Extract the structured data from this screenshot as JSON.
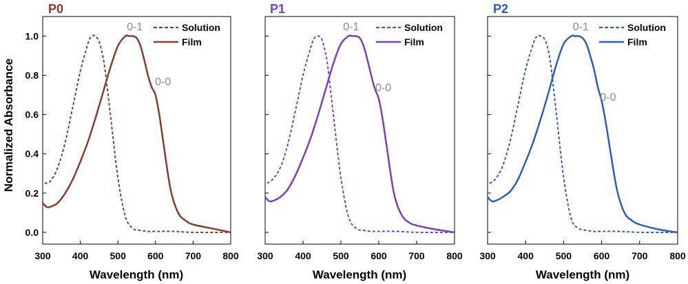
{
  "figure": {
    "ylabel": "Normalized Absorbance",
    "xlabel": "Wavelength (nm)"
  },
  "colors": {
    "P0": "#8B3A2E",
    "P1": "#7A3FC0",
    "P2": "#2A5CC8",
    "annotation": "#8a8a8a"
  },
  "chart_data": [
    {
      "type": "line",
      "title": "P0",
      "xlabel": "Wavelength (nm)",
      "ylabel": "Normalized Absorbance",
      "xlim": [
        300,
        800
      ],
      "ylim": [
        -0.06,
        1.1
      ],
      "xticks": [
        300,
        400,
        500,
        600,
        700,
        800
      ],
      "yticks": [
        0.0,
        0.2,
        0.4,
        0.6,
        0.8,
        1.0
      ],
      "xtick_labels": [
        "300",
        "400",
        "500",
        "600",
        "700",
        "800"
      ],
      "ytick_labels": [
        "0.0",
        "0.2",
        "0.4",
        "0.6",
        "0.8",
        "1.0"
      ],
      "legend_position": "top-right",
      "annotations": [
        {
          "text": "0-1",
          "x": 545,
          "y": 1.03
        },
        {
          "text": "0-0",
          "x": 620,
          "y": 0.75
        }
      ],
      "series": [
        {
          "name": "Solution",
          "style": "dashed",
          "x": [
            305,
            320,
            340,
            360,
            380,
            400,
            420,
            430,
            440,
            448,
            455,
            465,
            480,
            500,
            520,
            540,
            560,
            580,
            600,
            650,
            700,
            800
          ],
          "y": [
            0.25,
            0.26,
            0.33,
            0.46,
            0.64,
            0.82,
            0.96,
            1.0,
            1.0,
            0.98,
            0.94,
            0.84,
            0.6,
            0.28,
            0.08,
            0.02,
            0.01,
            0.005,
            0.005,
            0.005,
            0.0,
            0.0
          ]
        },
        {
          "name": "Film",
          "style": "solid",
          "x": [
            300,
            310,
            320,
            340,
            360,
            380,
            400,
            420,
            440,
            460,
            480,
            500,
            520,
            530,
            540,
            550,
            560,
            570,
            580,
            590,
            600,
            610,
            620,
            640,
            660,
            680,
            700,
            750,
            800
          ],
          "y": [
            0.15,
            0.13,
            0.13,
            0.15,
            0.2,
            0.27,
            0.36,
            0.46,
            0.58,
            0.71,
            0.84,
            0.95,
            1.0,
            1.0,
            1.0,
            0.99,
            0.95,
            0.88,
            0.8,
            0.74,
            0.7,
            0.6,
            0.47,
            0.22,
            0.1,
            0.06,
            0.04,
            0.02,
            0.0
          ]
        }
      ]
    },
    {
      "type": "line",
      "title": "P1",
      "xlabel": "Wavelength (nm)",
      "ylabel": "",
      "xlim": [
        300,
        800
      ],
      "ylim": [
        -0.06,
        1.1
      ],
      "xticks": [
        300,
        400,
        500,
        600,
        700,
        800
      ],
      "yticks": [
        0.0,
        0.2,
        0.4,
        0.6,
        0.8,
        1.0
      ],
      "xtick_labels": [
        "300",
        "400",
        "500",
        "600",
        "700",
        "800"
      ],
      "legend_position": "top-right",
      "annotations": [
        {
          "text": "0-1",
          "x": 527,
          "y": 1.03
        },
        {
          "text": "0-0",
          "x": 612,
          "y": 0.72
        }
      ],
      "series": [
        {
          "name": "Solution",
          "style": "dashed",
          "x": [
            305,
            320,
            340,
            360,
            380,
            400,
            420,
            430,
            440,
            448,
            455,
            465,
            480,
            500,
            520,
            540,
            560,
            580,
            600,
            650,
            700,
            800
          ],
          "y": [
            0.25,
            0.27,
            0.33,
            0.45,
            0.62,
            0.8,
            0.94,
            0.99,
            1.0,
            0.99,
            0.95,
            0.85,
            0.6,
            0.28,
            0.08,
            0.02,
            0.01,
            0.005,
            0.005,
            0.005,
            0.0,
            0.0
          ]
        },
        {
          "name": "Film",
          "style": "solid",
          "x": [
            300,
            310,
            320,
            340,
            360,
            380,
            400,
            420,
            440,
            460,
            480,
            500,
            520,
            530,
            540,
            550,
            560,
            570,
            580,
            590,
            600,
            610,
            620,
            640,
            660,
            680,
            700,
            750,
            800
          ],
          "y": [
            0.18,
            0.16,
            0.16,
            0.18,
            0.22,
            0.29,
            0.38,
            0.48,
            0.6,
            0.73,
            0.86,
            0.96,
            1.0,
            1.0,
            1.0,
            0.99,
            0.95,
            0.88,
            0.8,
            0.73,
            0.68,
            0.58,
            0.45,
            0.2,
            0.09,
            0.05,
            0.035,
            0.015,
            0.0
          ]
        }
      ]
    },
    {
      "type": "line",
      "title": "P2",
      "xlabel": "Wavelength (nm)",
      "ylabel": "",
      "xlim": [
        300,
        800
      ],
      "ylim": [
        -0.06,
        1.1
      ],
      "xticks": [
        300,
        400,
        500,
        600,
        700,
        800
      ],
      "yticks": [
        0.0,
        0.2,
        0.4,
        0.6,
        0.8,
        1.0
      ],
      "xtick_labels": [
        "300",
        "400",
        "500",
        "600",
        "700",
        "800"
      ],
      "legend_position": "top-right",
      "annotations": [
        {
          "text": "0-1",
          "x": 545,
          "y": 1.03
        },
        {
          "text": "0-0",
          "x": 617,
          "y": 0.67
        }
      ],
      "series": [
        {
          "name": "Solution",
          "style": "dashed",
          "x": [
            305,
            320,
            340,
            360,
            380,
            400,
            420,
            430,
            440,
            448,
            455,
            465,
            480,
            500,
            520,
            540,
            560,
            580,
            600,
            650,
            700,
            800
          ],
          "y": [
            0.25,
            0.27,
            0.34,
            0.47,
            0.65,
            0.83,
            0.96,
            1.0,
            1.0,
            0.99,
            0.96,
            0.87,
            0.62,
            0.28,
            0.07,
            0.02,
            0.01,
            0.005,
            0.005,
            0.005,
            0.0,
            0.0
          ]
        },
        {
          "name": "Film",
          "style": "solid",
          "x": [
            300,
            310,
            320,
            340,
            360,
            380,
            400,
            420,
            440,
            460,
            480,
            500,
            520,
            530,
            540,
            550,
            560,
            570,
            580,
            590,
            600,
            610,
            620,
            640,
            660,
            680,
            700,
            750,
            800
          ],
          "y": [
            0.18,
            0.16,
            0.16,
            0.18,
            0.21,
            0.27,
            0.36,
            0.46,
            0.58,
            0.71,
            0.85,
            0.96,
            1.0,
            1.0,
            1.0,
            0.99,
            0.96,
            0.9,
            0.83,
            0.74,
            0.67,
            0.57,
            0.45,
            0.22,
            0.1,
            0.06,
            0.04,
            0.015,
            0.0
          ]
        }
      ]
    }
  ]
}
